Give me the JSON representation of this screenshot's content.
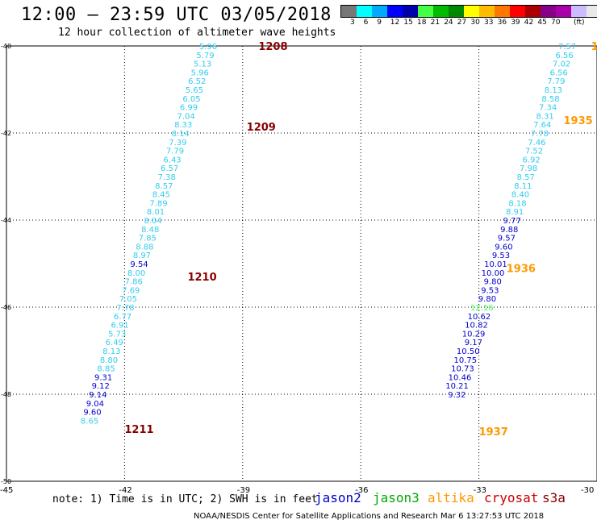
{
  "header": {
    "title": "12:00 — 23:59 UTC 03/05/2018",
    "subtitle": "12 hour collection of altimeter wave heights"
  },
  "colorbar": {
    "colors": [
      "#777777",
      "#00ffff",
      "#00aaff",
      "#0000ff",
      "#0000aa",
      "#44ff44",
      "#00bb00",
      "#008800",
      "#ffff00",
      "#ffbb00",
      "#ff7700",
      "#ff0000",
      "#aa0000",
      "#880088",
      "#aa00aa",
      "#ccbbff",
      "#e8e8e8",
      "#000000"
    ],
    "labels": [
      "3",
      "6",
      "9",
      "12",
      "15",
      "18",
      "21",
      "24",
      "27",
      "30",
      "33",
      "36",
      "39",
      "42",
      "45",
      "70"
    ],
    "unit": "(ft)"
  },
  "chart_data": {
    "type": "scatter",
    "xlim": [
      -45,
      -30
    ],
    "ylim": [
      -50,
      -40
    ],
    "x_ticks": [
      "-45",
      "-42",
      "-39",
      "-36",
      "-33",
      "-30"
    ],
    "y_ticks": [
      "-40",
      "-42",
      "-44",
      "-46",
      "-48",
      "-50"
    ],
    "grid": true,
    "time_labels": [
      {
        "text": "1208",
        "lon": -38.6,
        "lat": -40.0,
        "color": "#880000"
      },
      {
        "text": "1209",
        "lon": -38.9,
        "lat": -41.85,
        "color": "#880000"
      },
      {
        "text": "1210",
        "lon": -40.4,
        "lat": -45.3,
        "color": "#880000"
      },
      {
        "text": "1211",
        "lon": -42.0,
        "lat": -48.8,
        "color": "#880000"
      },
      {
        "text": "19",
        "lon": -30.15,
        "lat": -40.0,
        "color": "#ff9900"
      },
      {
        "text": "1935",
        "lon": -30.85,
        "lat": -41.7,
        "color": "#ff9900"
      },
      {
        "text": "1936",
        "lon": -32.3,
        "lat": -45.1,
        "color": "#ff9900"
      },
      {
        "text": "1937",
        "lon": -33.0,
        "lat": -48.85,
        "color": "#ff9900"
      }
    ],
    "tracks": [
      {
        "points": [
          {
            "lon": -39.65,
            "lat": -40.0,
            "v": "5.96",
            "c": "#33ccee"
          },
          {
            "lon": -39.72,
            "lat": -40.2,
            "v": "5.79",
            "c": "#33ccee"
          },
          {
            "lon": -39.79,
            "lat": -40.4,
            "v": "5.13",
            "c": "#33ccee"
          },
          {
            "lon": -39.86,
            "lat": -40.6,
            "v": "5.96",
            "c": "#33ccee"
          },
          {
            "lon": -39.93,
            "lat": -40.8,
            "v": "6.52",
            "c": "#33ccee"
          },
          {
            "lon": -40.0,
            "lat": -41.0,
            "v": "5.65",
            "c": "#33ccee"
          },
          {
            "lon": -40.07,
            "lat": -41.2,
            "v": "6.05",
            "c": "#33ccee"
          },
          {
            "lon": -40.14,
            "lat": -41.4,
            "v": "6.99",
            "c": "#33ccee"
          },
          {
            "lon": -40.21,
            "lat": -41.6,
            "v": "7.04",
            "c": "#33ccee"
          },
          {
            "lon": -40.28,
            "lat": -41.8,
            "v": "8.33",
            "c": "#33ccee"
          },
          {
            "lon": -40.35,
            "lat": -42.0,
            "v": "8.14",
            "c": "#33ccee"
          },
          {
            "lon": -40.42,
            "lat": -42.2,
            "v": "7.39",
            "c": "#33ccee"
          },
          {
            "lon": -40.49,
            "lat": -42.4,
            "v": "7.79",
            "c": "#33ccee"
          },
          {
            "lon": -40.56,
            "lat": -42.6,
            "v": "6.43",
            "c": "#33ccee"
          },
          {
            "lon": -40.63,
            "lat": -42.8,
            "v": "6.57",
            "c": "#33ccee"
          },
          {
            "lon": -40.7,
            "lat": -43.0,
            "v": "7.38",
            "c": "#33ccee"
          },
          {
            "lon": -40.77,
            "lat": -43.2,
            "v": "8.57",
            "c": "#33ccee"
          },
          {
            "lon": -40.84,
            "lat": -43.4,
            "v": "8.45",
            "c": "#33ccee"
          },
          {
            "lon": -40.91,
            "lat": -43.6,
            "v": "7.89",
            "c": "#33ccee"
          },
          {
            "lon": -40.98,
            "lat": -43.8,
            "v": "8.01",
            "c": "#33ccee"
          },
          {
            "lon": -41.05,
            "lat": -44.0,
            "v": "8.04",
            "c": "#33ccee"
          },
          {
            "lon": -41.12,
            "lat": -44.2,
            "v": "8.48",
            "c": "#33ccee"
          },
          {
            "lon": -41.19,
            "lat": -44.4,
            "v": "7.85",
            "c": "#33ccee"
          },
          {
            "lon": -41.26,
            "lat": -44.6,
            "v": "8.88",
            "c": "#33ccee"
          },
          {
            "lon": -41.33,
            "lat": -44.8,
            "v": "8.97",
            "c": "#33ccee"
          },
          {
            "lon": -41.4,
            "lat": -45.0,
            "v": "9.54",
            "c": "#0000cc"
          },
          {
            "lon": -41.47,
            "lat": -45.2,
            "v": "8.00",
            "c": "#33ccee"
          },
          {
            "lon": -41.54,
            "lat": -45.4,
            "v": "7.86",
            "c": "#33ccee"
          },
          {
            "lon": -41.61,
            "lat": -45.6,
            "v": "7.69",
            "c": "#33ccee"
          },
          {
            "lon": -41.68,
            "lat": -45.8,
            "v": "7.05",
            "c": "#33ccee"
          },
          {
            "lon": -41.75,
            "lat": -46.0,
            "v": "7.78",
            "c": "#33ccee"
          },
          {
            "lon": -41.82,
            "lat": -46.2,
            "v": "6.77",
            "c": "#33ccee"
          },
          {
            "lon": -41.89,
            "lat": -46.4,
            "v": "6.91",
            "c": "#33ccee"
          },
          {
            "lon": -41.96,
            "lat": -46.6,
            "v": "5.73",
            "c": "#33ccee"
          },
          {
            "lon": -42.03,
            "lat": -46.8,
            "v": "6.49",
            "c": "#33ccee"
          },
          {
            "lon": -42.1,
            "lat": -47.0,
            "v": "8.13",
            "c": "#33ccee"
          },
          {
            "lon": -42.17,
            "lat": -47.2,
            "v": "8.80",
            "c": "#33ccee"
          },
          {
            "lon": -42.24,
            "lat": -47.4,
            "v": "8.85",
            "c": "#33ccee"
          },
          {
            "lon": -42.31,
            "lat": -47.6,
            "v": "9.31",
            "c": "#0000cc"
          },
          {
            "lon": -42.38,
            "lat": -47.8,
            "v": "9.12",
            "c": "#0000cc"
          },
          {
            "lon": -42.45,
            "lat": -48.0,
            "v": "9.14",
            "c": "#0000cc"
          },
          {
            "lon": -42.52,
            "lat": -48.2,
            "v": "9.04",
            "c": "#0000cc"
          },
          {
            "lon": -42.59,
            "lat": -48.4,
            "v": "9.60",
            "c": "#0000cc"
          },
          {
            "lon": -42.66,
            "lat": -48.6,
            "v": "8.65",
            "c": "#33ccee"
          }
        ]
      },
      {
        "points": [
          {
            "lon": -30.53,
            "lat": -40.0,
            "v": "7.57",
            "c": "#33ccee"
          },
          {
            "lon": -30.6,
            "lat": -40.2,
            "v": "6.56",
            "c": "#33ccee"
          },
          {
            "lon": -30.67,
            "lat": -40.4,
            "v": "7.02",
            "c": "#33ccee"
          },
          {
            "lon": -30.74,
            "lat": -40.6,
            "v": "6.56",
            "c": "#33ccee"
          },
          {
            "lon": -30.81,
            "lat": -40.8,
            "v": "7.79",
            "c": "#33ccee"
          },
          {
            "lon": -30.88,
            "lat": -41.0,
            "v": "8.13",
            "c": "#33ccee"
          },
          {
            "lon": -30.95,
            "lat": -41.2,
            "v": "8.58",
            "c": "#33ccee"
          },
          {
            "lon": -31.02,
            "lat": -41.4,
            "v": "7.34",
            "c": "#33ccee"
          },
          {
            "lon": -31.09,
            "lat": -41.6,
            "v": "8.31",
            "c": "#33ccee"
          },
          {
            "lon": -31.16,
            "lat": -41.8,
            "v": "7.64",
            "c": "#33ccee"
          },
          {
            "lon": -31.23,
            "lat": -42.0,
            "v": "7.78",
            "c": "#33ccee"
          },
          {
            "lon": -31.3,
            "lat": -42.2,
            "v": "7.46",
            "c": "#33ccee"
          },
          {
            "lon": -31.37,
            "lat": -42.4,
            "v": "7.52",
            "c": "#33ccee"
          },
          {
            "lon": -31.44,
            "lat": -42.6,
            "v": "6.92",
            "c": "#33ccee"
          },
          {
            "lon": -31.51,
            "lat": -42.8,
            "v": "7.98",
            "c": "#33ccee"
          },
          {
            "lon": -31.58,
            "lat": -43.0,
            "v": "8.57",
            "c": "#33ccee"
          },
          {
            "lon": -31.65,
            "lat": -43.2,
            "v": "8.11",
            "c": "#33ccee"
          },
          {
            "lon": -31.72,
            "lat": -43.4,
            "v": "8.40",
            "c": "#33ccee"
          },
          {
            "lon": -31.79,
            "lat": -43.6,
            "v": "8.18",
            "c": "#33ccee"
          },
          {
            "lon": -31.86,
            "lat": -43.8,
            "v": "8.91",
            "c": "#33ccee"
          },
          {
            "lon": -31.93,
            "lat": -44.0,
            "v": "9.77",
            "c": "#0000cc"
          },
          {
            "lon": -32.0,
            "lat": -44.2,
            "v": "9.88",
            "c": "#0000cc"
          },
          {
            "lon": -32.07,
            "lat": -44.4,
            "v": "9.57",
            "c": "#0000cc"
          },
          {
            "lon": -32.14,
            "lat": -44.6,
            "v": "9.60",
            "c": "#0000cc"
          },
          {
            "lon": -32.21,
            "lat": -44.8,
            "v": "9.53",
            "c": "#0000cc"
          },
          {
            "lon": -32.28,
            "lat": -45.0,
            "v": "10.01",
            "c": "#0000cc"
          },
          {
            "lon": -32.35,
            "lat": -45.2,
            "v": "10.00",
            "c": "#0000cc"
          },
          {
            "lon": -32.42,
            "lat": -45.4,
            "v": "9.80",
            "c": "#0000cc"
          },
          {
            "lon": -32.49,
            "lat": -45.6,
            "v": "9.53",
            "c": "#0000cc"
          },
          {
            "lon": -32.56,
            "lat": -45.8,
            "v": "9.80",
            "c": "#0000cc"
          },
          {
            "lon": -32.63,
            "lat": -46.0,
            "v": "12.16",
            "c": "#44ff44"
          },
          {
            "lon": -32.7,
            "lat": -46.2,
            "v": "10.62",
            "c": "#0000cc"
          },
          {
            "lon": -32.77,
            "lat": -46.4,
            "v": "10.82",
            "c": "#0000cc"
          },
          {
            "lon": -32.84,
            "lat": -46.6,
            "v": "10.29",
            "c": "#0000cc"
          },
          {
            "lon": -32.91,
            "lat": -46.8,
            "v": "9.17",
            "c": "#0000cc"
          },
          {
            "lon": -32.98,
            "lat": -47.0,
            "v": "10.50",
            "c": "#0000cc"
          },
          {
            "lon": -33.05,
            "lat": -47.2,
            "v": "10.75",
            "c": "#0000cc"
          },
          {
            "lon": -33.12,
            "lat": -47.4,
            "v": "10.73",
            "c": "#0000cc"
          },
          {
            "lon": -33.19,
            "lat": -47.6,
            "v": "10.46",
            "c": "#0000cc"
          },
          {
            "lon": -33.26,
            "lat": -47.8,
            "v": "10.21",
            "c": "#0000cc"
          },
          {
            "lon": -33.33,
            "lat": -48.0,
            "v": "9.32",
            "c": "#0000cc"
          }
        ]
      }
    ]
  },
  "footer": {
    "note": "note: 1) Time is in UTC; 2) SWH is in feet",
    "satellites": [
      {
        "name": "jason2",
        "color": "#0000cc"
      },
      {
        "name": "jason3",
        "color": "#00aa00"
      },
      {
        "name": "altika",
        "color": "#ff9900"
      },
      {
        "name": "cryosat",
        "color": "#cc0000"
      },
      {
        "name": "s3a",
        "color": "#880000"
      }
    ],
    "credit": "NOAA/NESDIS Center for Satellite Applications and Research    Mar  6 13:27:53 UTC 2018"
  }
}
